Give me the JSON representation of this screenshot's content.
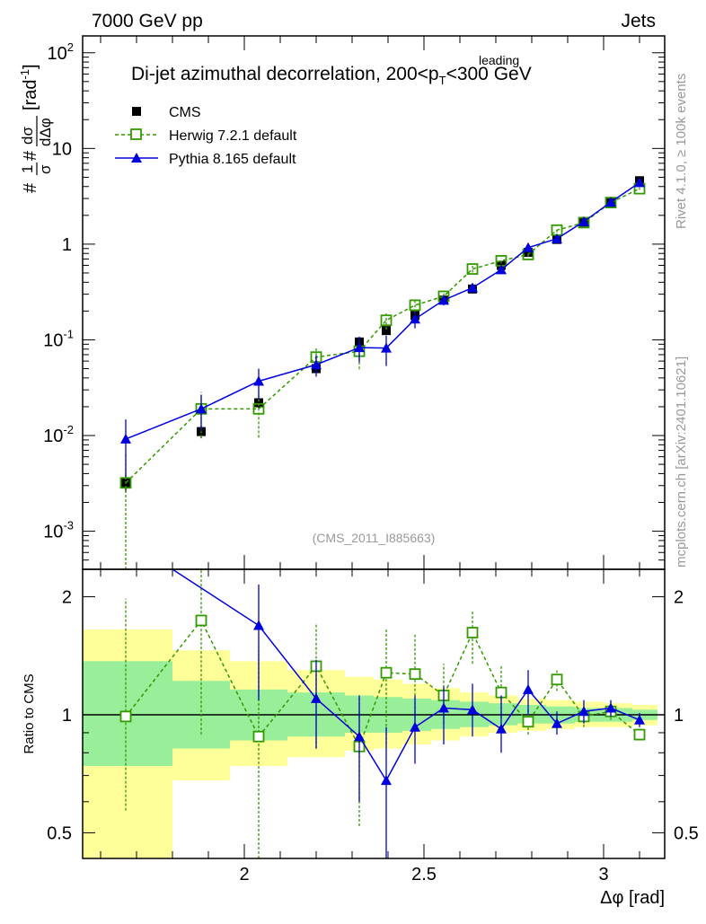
{
  "header": {
    "left": "7000 GeV pp",
    "right": "Jets"
  },
  "side_text": {
    "top": "Rivet 4.1.0, ≥ 100k events",
    "bottom": "mcplots.cern.ch [arXiv:2401.10621]"
  },
  "chart_data": [
    {
      "type": "scatter",
      "title": "Di-jet azimuthal decorrelation, 200<p",
      "title_sup": "leading",
      "title_sub": "T",
      "title_tail": "<300 GeV",
      "ylabel": "1/σ dσ/dΔφ [rad⁻¹]",
      "yscale": "log",
      "ylim": [
        0.0004,
        150
      ],
      "xlim": [
        1.55,
        3.17
      ],
      "ytick_labels": [
        "10^-3",
        "10^-2",
        "10^-1",
        "1",
        "10",
        "10^2"
      ],
      "watermark": "(CMS_2011_I885663)",
      "legend": [
        "CMS",
        "Herwig 7.2.1 default",
        "Pythia 8.165 default"
      ],
      "x": [
        1.67,
        1.88,
        2.04,
        2.2,
        2.32,
        2.395,
        2.475,
        2.555,
        2.635,
        2.715,
        2.79,
        2.87,
        2.945,
        3.02,
        3.1
      ],
      "series": [
        {
          "name": "CMS",
          "color": "#000000",
          "values": [
            0.0032,
            0.011,
            0.022,
            0.05,
            0.095,
            0.125,
            0.18,
            0.26,
            0.34,
            0.6,
            0.82,
            1.12,
            1.7,
            2.7,
            4.6
          ],
          "rel_err": [
            0.2,
            0.15,
            0.12,
            0.1,
            0.1,
            0.09,
            0.08,
            0.07,
            0.06,
            0.05,
            0.05,
            0.04,
            0.04,
            0.03,
            0.03
          ]
        },
        {
          "name": "Herwig 7.2.1 default",
          "color": "#339900",
          "values": [
            0.0032,
            0.019,
            0.019,
            0.066,
            0.076,
            0.16,
            0.23,
            0.285,
            0.55,
            0.67,
            0.78,
            1.4,
            1.68,
            2.72,
            3.8
          ],
          "rel_err": [
            1.0,
            0.5,
            0.5,
            0.25,
            0.35,
            0.2,
            0.15,
            0.1,
            0.08,
            0.06,
            0.06,
            0.05,
            0.05,
            0.04,
            0.03
          ]
        },
        {
          "name": "Pythia 8.165 default",
          "color": "#0000dd",
          "values": [
            0.0092,
            0.019,
            0.037,
            0.055,
            0.083,
            0.082,
            0.165,
            0.26,
            0.35,
            0.54,
            0.92,
            1.14,
            1.72,
            2.75,
            4.4
          ],
          "rel_err": [
            0.6,
            0.4,
            0.35,
            0.25,
            0.3,
            0.35,
            0.2,
            0.12,
            0.1,
            0.08,
            0.07,
            0.05,
            0.04,
            0.04,
            0.03
          ]
        }
      ]
    },
    {
      "type": "line",
      "ylabel": "Ratio to CMS",
      "yscale": "log",
      "ylim": [
        0.43,
        2.35
      ],
      "xlim": [
        1.55,
        3.17
      ],
      "xlabel": "Δφ [rad]",
      "xtick_labels": [
        "2",
        "2.5",
        "3"
      ],
      "xticks": [
        2,
        2.5,
        3
      ],
      "ytick_labels": [
        "0.5",
        "1",
        "2"
      ],
      "yticks": [
        0.5,
        1,
        2
      ],
      "bands": [
        {
          "x0": 1.55,
          "x1": 1.8,
          "yellow": [
            0.43,
            1.65
          ],
          "green": [
            0.74,
            1.37
          ]
        },
        {
          "x0": 1.8,
          "x1": 1.96,
          "yellow": [
            0.68,
            1.46
          ],
          "green": [
            0.82,
            1.22
          ]
        },
        {
          "x0": 1.96,
          "x1": 2.12,
          "yellow": [
            0.74,
            1.37
          ],
          "green": [
            0.86,
            1.16
          ]
        },
        {
          "x0": 2.12,
          "x1": 2.28,
          "yellow": [
            0.78,
            1.3
          ],
          "green": [
            0.88,
            1.14
          ]
        },
        {
          "x0": 2.28,
          "x1": 2.36,
          "yellow": [
            0.81,
            1.25
          ],
          "green": [
            0.9,
            1.12
          ]
        },
        {
          "x0": 2.36,
          "x1": 2.44,
          "yellow": [
            0.82,
            1.23
          ],
          "green": [
            0.9,
            1.11
          ]
        },
        {
          "x0": 2.44,
          "x1": 2.52,
          "yellow": [
            0.84,
            1.2
          ],
          "green": [
            0.91,
            1.1
          ]
        },
        {
          "x0": 2.52,
          "x1": 2.6,
          "yellow": [
            0.86,
            1.17
          ],
          "green": [
            0.92,
            1.09
          ]
        },
        {
          "x0": 2.6,
          "x1": 2.68,
          "yellow": [
            0.88,
            1.14
          ],
          "green": [
            0.93,
            1.08
          ]
        },
        {
          "x0": 2.68,
          "x1": 2.76,
          "yellow": [
            0.9,
            1.12
          ],
          "green": [
            0.94,
            1.07
          ]
        },
        {
          "x0": 2.76,
          "x1": 2.84,
          "yellow": [
            0.91,
            1.1
          ],
          "green": [
            0.95,
            1.06
          ]
        },
        {
          "x0": 2.84,
          "x1": 2.92,
          "yellow": [
            0.92,
            1.09
          ],
          "green": [
            0.95,
            1.05
          ]
        },
        {
          "x0": 2.92,
          "x1": 3.0,
          "yellow": [
            0.93,
            1.08
          ],
          "green": [
            0.96,
            1.04
          ]
        },
        {
          "x0": 3.0,
          "x1": 3.08,
          "yellow": [
            0.93,
            1.07
          ],
          "green": [
            0.96,
            1.04
          ]
        },
        {
          "x0": 3.08,
          "x1": 3.15,
          "yellow": [
            0.94,
            1.06
          ],
          "green": [
            0.97,
            1.03
          ]
        }
      ],
      "series": [
        {
          "name": "Herwig 7.2.1 default",
          "color": "#339900",
          "x": [
            1.67,
            1.88,
            2.04,
            2.2,
            2.32,
            2.395,
            2.475,
            2.555,
            2.635,
            2.715,
            2.79,
            2.87,
            2.945,
            3.02,
            3.1
          ],
          "values": [
            0.99,
            1.74,
            0.88,
            1.33,
            0.83,
            1.28,
            1.27,
            1.12,
            1.62,
            1.14,
            0.96,
            1.23,
            0.99,
            1.02,
            0.89
          ],
          "err_lo": [
            0.57,
            0.89,
            0.38,
            0.82,
            0.52,
            0.84,
            0.93,
            0.95,
            1.35,
            0.98,
            0.89,
            1.15,
            0.93,
            0.97,
            0.86
          ],
          "err_hi": [
            1.98,
            2.4,
            1.5,
            1.7,
            1.1,
            1.65,
            1.6,
            1.35,
            1.85,
            1.33,
            1.03,
            1.31,
            1.05,
            1.06,
            0.93
          ]
        },
        {
          "name": "Pythia 8.165 default",
          "color": "#0000dd",
          "x": [
            1.8,
            2.04,
            2.2,
            2.32,
            2.395,
            2.475,
            2.555,
            2.635,
            2.715,
            2.79,
            2.87,
            2.945,
            3.02,
            3.1
          ],
          "values": [
            2.35,
            1.69,
            1.1,
            0.88,
            0.68,
            0.93,
            1.04,
            1.03,
            0.92,
            1.16,
            0.95,
            1.02,
            1.04,
            0.97
          ],
          "err_lo": [
            2.35,
            1.09,
            0.82,
            0.6,
            0.41,
            0.75,
            0.84,
            0.88,
            0.8,
            1.0,
            0.89,
            0.95,
            0.99,
            0.93
          ],
          "err_hi": [
            2.35,
            2.15,
            1.38,
            1.12,
            0.93,
            1.12,
            1.18,
            1.2,
            1.12,
            1.3,
            1.02,
            1.09,
            1.09,
            1.01
          ]
        }
      ]
    }
  ]
}
